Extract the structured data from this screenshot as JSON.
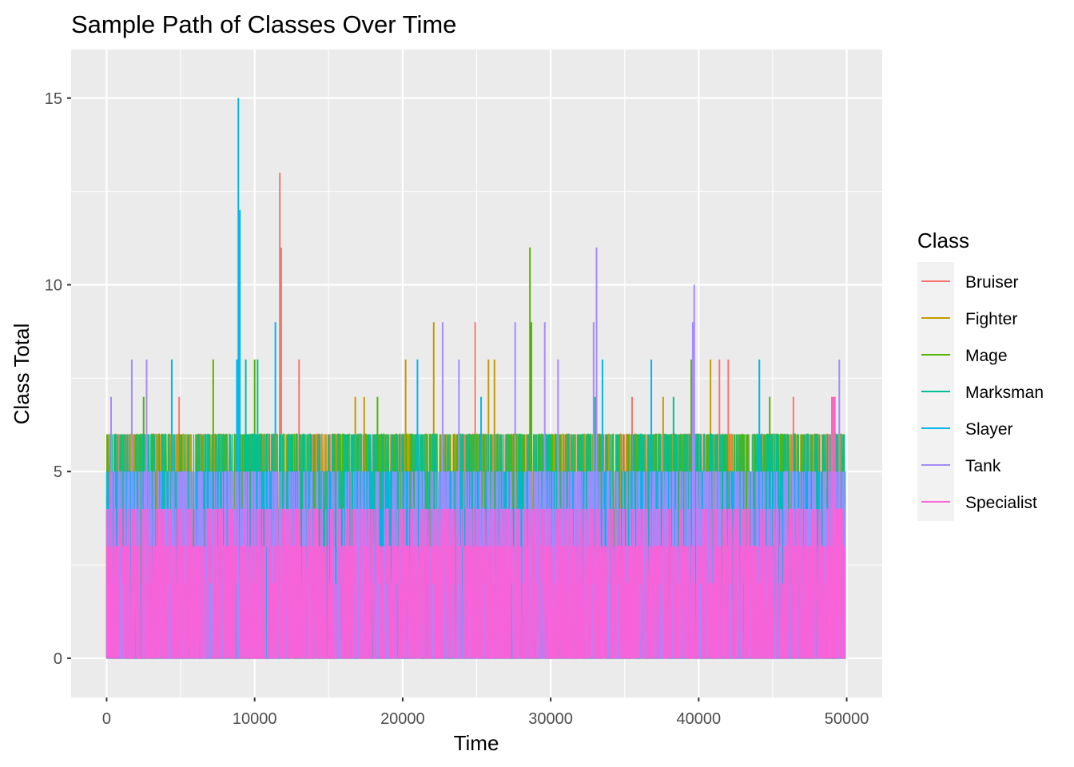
{
  "chart_data": {
    "type": "line",
    "title": "Sample Path of Classes Over Time",
    "xlabel": "Time",
    "ylabel": "Class Total",
    "xlim": [
      -2400,
      52400
    ],
    "ylim": [
      -1.05,
      16.3
    ],
    "x_ticks": [
      0,
      10000,
      20000,
      30000,
      40000,
      50000
    ],
    "x_tick_labels": [
      "0",
      "10000",
      "20000",
      "30000",
      "40000",
      "50000"
    ],
    "y_ticks": [
      0,
      5,
      10,
      15
    ],
    "y_tick_labels": [
      "0",
      "5",
      "10",
      "15"
    ],
    "grid": true,
    "legend_position": "right",
    "legend_title": "Class",
    "x_range": [
      0,
      49900
    ],
    "series": [
      {
        "name": "Bruiser",
        "color": "#F8766D",
        "peaks": [
          {
            "x": 11700,
            "y": 13
          },
          {
            "x": 11800,
            "y": 11
          },
          {
            "x": 13000,
            "y": 8
          },
          {
            "x": 24900,
            "y": 9
          },
          {
            "x": 4900,
            "y": 7
          },
          {
            "x": 41400,
            "y": 8
          },
          {
            "x": 42000,
            "y": 8
          },
          {
            "x": 46400,
            "y": 7
          },
          {
            "x": 35500,
            "y": 7
          },
          {
            "x": 49100,
            "y": 7
          }
        ],
        "typical_max": 6
      },
      {
        "name": "Fighter",
        "color": "#C49A00",
        "peaks": [
          {
            "x": 22100,
            "y": 9
          },
          {
            "x": 20200,
            "y": 8
          },
          {
            "x": 25800,
            "y": 8
          },
          {
            "x": 26200,
            "y": 8
          },
          {
            "x": 40800,
            "y": 8
          },
          {
            "x": 16800,
            "y": 7
          },
          {
            "x": 17400,
            "y": 7
          },
          {
            "x": 37600,
            "y": 7
          },
          {
            "x": 31900,
            "y": 6
          }
        ],
        "typical_max": 6
      },
      {
        "name": "Mage",
        "color": "#53B400",
        "peaks": [
          {
            "x": 28600,
            "y": 11
          },
          {
            "x": 28700,
            "y": 9
          },
          {
            "x": 7200,
            "y": 8
          },
          {
            "x": 10000,
            "y": 8
          },
          {
            "x": 39500,
            "y": 8
          },
          {
            "x": 2500,
            "y": 7
          },
          {
            "x": 18300,
            "y": 7
          },
          {
            "x": 44800,
            "y": 7
          },
          {
            "x": 49800,
            "y": 6
          }
        ],
        "typical_max": 6
      },
      {
        "name": "Marksman",
        "color": "#00C094",
        "peaks": [
          {
            "x": 9400,
            "y": 8
          },
          {
            "x": 10200,
            "y": 8
          },
          {
            "x": 38300,
            "y": 7
          },
          {
            "x": 33000,
            "y": 7
          },
          {
            "x": 6700,
            "y": 6
          }
        ],
        "typical_max": 6
      },
      {
        "name": "Slayer",
        "color": "#00B6EB",
        "peaks": [
          {
            "x": 8900,
            "y": 15
          },
          {
            "x": 9000,
            "y": 12
          },
          {
            "x": 8800,
            "y": 8
          },
          {
            "x": 11400,
            "y": 9
          },
          {
            "x": 4400,
            "y": 8
          },
          {
            "x": 21000,
            "y": 8
          },
          {
            "x": 33500,
            "y": 8
          },
          {
            "x": 36800,
            "y": 8
          },
          {
            "x": 44100,
            "y": 8
          },
          {
            "x": 25300,
            "y": 7
          }
        ],
        "typical_max": 5
      },
      {
        "name": "Tank",
        "color": "#A58AFF",
        "peaks": [
          {
            "x": 33100,
            "y": 11
          },
          {
            "x": 39700,
            "y": 10
          },
          {
            "x": 39600,
            "y": 9
          },
          {
            "x": 22700,
            "y": 9
          },
          {
            "x": 27600,
            "y": 9
          },
          {
            "x": 29600,
            "y": 9
          },
          {
            "x": 32900,
            "y": 9
          },
          {
            "x": 1700,
            "y": 8
          },
          {
            "x": 2700,
            "y": 8
          },
          {
            "x": 23800,
            "y": 8
          },
          {
            "x": 30500,
            "y": 8
          },
          {
            "x": 49500,
            "y": 8
          },
          {
            "x": 300,
            "y": 7
          }
        ],
        "typical_max": 5
      },
      {
        "name": "Specialist",
        "color": "#FB61D7",
        "peaks": [
          {
            "x": 49000,
            "y": 7
          },
          {
            "x": 49200,
            "y": 7
          },
          {
            "x": 300,
            "y": 5
          },
          {
            "x": 48800,
            "y": 6
          }
        ],
        "typical_max": 4
      }
    ]
  }
}
